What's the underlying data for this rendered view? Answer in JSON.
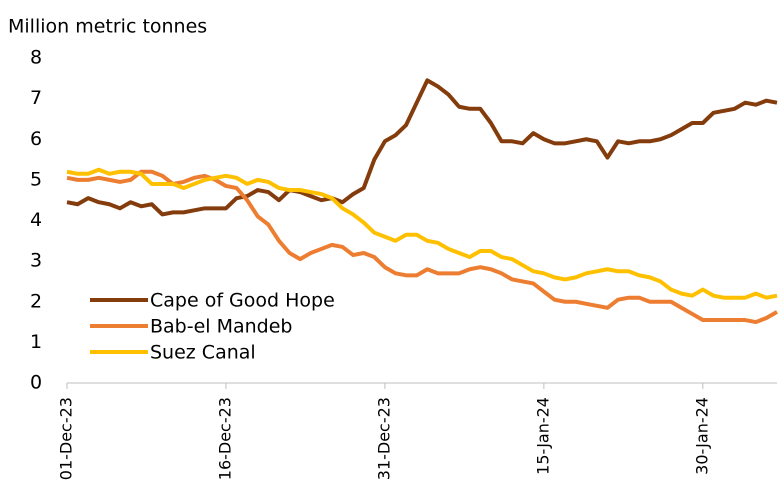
{
  "chart_data": {
    "type": "line",
    "y_label": "Million metric tonnes",
    "x": [
      "01-Dec-23",
      null,
      null,
      null,
      null,
      null,
      null,
      null,
      null,
      null,
      null,
      null,
      null,
      null,
      null,
      "16-Dec-23",
      null,
      null,
      null,
      null,
      null,
      null,
      null,
      null,
      null,
      null,
      null,
      null,
      null,
      null,
      "31-Dec-23",
      null,
      null,
      null,
      null,
      null,
      null,
      null,
      null,
      null,
      null,
      null,
      null,
      null,
      null,
      "15-Jan-24",
      null,
      null,
      null,
      null,
      null,
      null,
      null,
      null,
      null,
      null,
      null,
      null,
      null,
      null,
      "30-Jan-24",
      null,
      null,
      null,
      null,
      null,
      null,
      null
    ],
    "series": [
      {
        "name": "Cape of Good Hope",
        "color": "#843c0c",
        "values": [
          4.45,
          4.4,
          4.55,
          4.45,
          4.4,
          4.3,
          4.45,
          4.35,
          4.4,
          4.15,
          4.2,
          4.2,
          4.25,
          4.3,
          4.3,
          4.3,
          4.55,
          4.6,
          4.75,
          4.7,
          4.5,
          4.75,
          4.7,
          4.6,
          4.5,
          4.55,
          4.45,
          4.65,
          4.8,
          5.5,
          5.95,
          6.1,
          6.35,
          6.9,
          7.45,
          7.3,
          7.1,
          6.8,
          6.75,
          6.75,
          6.4,
          5.95,
          5.95,
          5.9,
          6.15,
          6.0,
          5.9,
          5.9,
          5.95,
          6.0,
          5.95,
          5.55,
          5.95,
          5.9,
          5.95,
          5.95,
          6.0,
          6.1,
          6.25,
          6.4,
          6.4,
          6.65,
          6.7,
          6.75,
          6.9,
          6.85,
          6.95,
          6.9
        ]
      },
      {
        "name": "Bab-el Mandeb",
        "color": "#ed7d31",
        "values": [
          5.05,
          5.0,
          5.0,
          5.05,
          5.0,
          4.95,
          5.0,
          5.2,
          5.2,
          5.1,
          4.9,
          4.95,
          5.05,
          5.1,
          5.0,
          4.85,
          4.8,
          4.5,
          4.1,
          3.9,
          3.5,
          3.2,
          3.05,
          3.2,
          3.3,
          3.4,
          3.35,
          3.15,
          3.2,
          3.1,
          2.85,
          2.7,
          2.65,
          2.65,
          2.8,
          2.7,
          2.7,
          2.7,
          2.8,
          2.85,
          2.8,
          2.7,
          2.55,
          2.5,
          2.45,
          2.25,
          2.05,
          2.0,
          2.0,
          1.95,
          1.9,
          1.85,
          2.05,
          2.1,
          2.1,
          2.0,
          2.0,
          2.0,
          1.85,
          1.7,
          1.55,
          1.55,
          1.55,
          1.55,
          1.55,
          1.5,
          1.6,
          1.75
        ]
      },
      {
        "name": "Suez Canal",
        "color": "#ffc000",
        "values": [
          5.2,
          5.15,
          5.15,
          5.25,
          5.15,
          5.2,
          5.2,
          5.15,
          4.9,
          4.9,
          4.9,
          4.8,
          4.9,
          5.0,
          5.05,
          5.1,
          5.05,
          4.9,
          5.0,
          4.95,
          4.8,
          4.75,
          4.75,
          4.7,
          4.65,
          4.55,
          4.3,
          4.15,
          3.95,
          3.7,
          3.6,
          3.5,
          3.65,
          3.65,
          3.5,
          3.45,
          3.3,
          3.2,
          3.1,
          3.25,
          3.25,
          3.1,
          3.05,
          2.9,
          2.75,
          2.7,
          2.6,
          2.55,
          2.6,
          2.7,
          2.75,
          2.8,
          2.75,
          2.75,
          2.65,
          2.6,
          2.5,
          2.3,
          2.2,
          2.15,
          2.3,
          2.15,
          2.1,
          2.1,
          2.1,
          2.2,
          2.1,
          2.15
        ]
      }
    ],
    "ylim": [
      0,
      8
    ],
    "yticks": [
      0,
      1,
      2,
      3,
      4,
      5,
      6,
      7,
      8
    ],
    "grid": false,
    "legend": "lower left"
  }
}
